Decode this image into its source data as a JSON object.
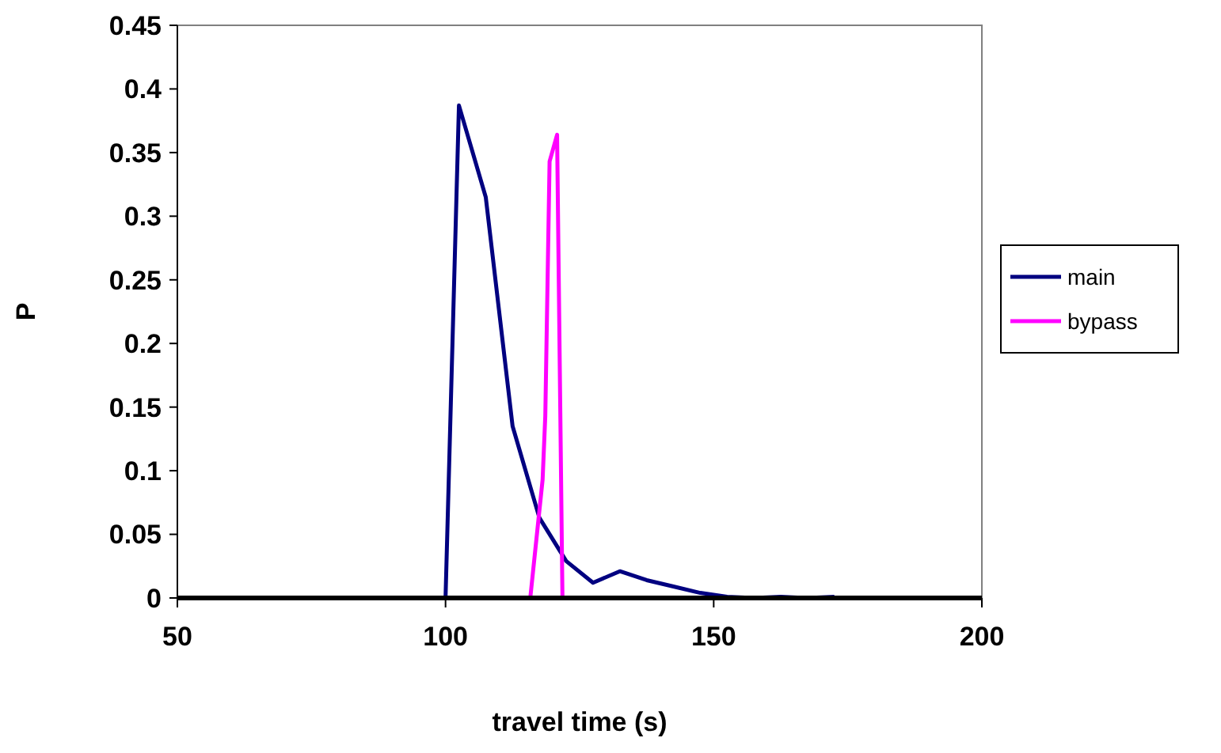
{
  "chart_data": {
    "type": "line",
    "xlabel": "travel time (s)",
    "ylabel": "P",
    "xlim": [
      50,
      200
    ],
    "xticks": [
      50,
      100,
      150,
      200
    ],
    "ylim": [
      0,
      0.45
    ],
    "yticks": [
      0,
      0.05,
      0.1,
      0.15,
      0.2,
      0.25,
      0.3,
      0.35,
      0.4,
      0.45
    ],
    "grid": false,
    "legend": "right",
    "marker": "none",
    "line_style": "solid",
    "series": [
      {
        "name": "main",
        "color": "#000080",
        "x": [
          100,
          102.5,
          107.5,
          112.5,
          117.5,
          122.5,
          127.5,
          132.5,
          137.5,
          142.5,
          147.5,
          152.5,
          157.5,
          162.5,
          167.5,
          172.5
        ],
        "values": [
          0,
          0.387,
          0.315,
          0.135,
          0.063,
          0.029,
          0.012,
          0.021,
          0.014,
          0.009,
          0.004,
          0.001,
          0,
          0.001,
          0,
          0.001
        ]
      },
      {
        "name": "bypass",
        "color": "#ff00ff",
        "x": [
          115.8,
          118.1,
          118.6,
          119.4,
          120.8,
          121.8
        ],
        "values": [
          0,
          0.093,
          0.143,
          0.343,
          0.364,
          0
        ]
      }
    ]
  }
}
